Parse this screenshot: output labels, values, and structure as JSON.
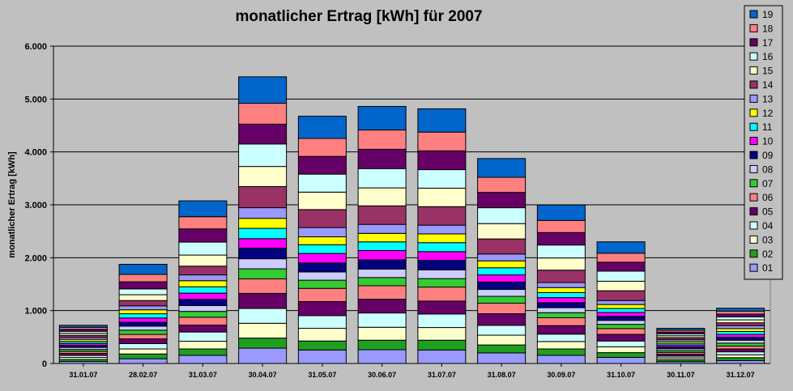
{
  "chart_data": {
    "type": "bar",
    "stacked": true,
    "title": "monatlicher Ertrag [kWh] für 2007",
    "xlabel": "",
    "ylabel": "monatlicher Ertrag [kWh]",
    "ylim": [
      0,
      6000
    ],
    "yticks": [
      "0",
      "1.000",
      "2.000",
      "3.000",
      "4.000",
      "5.000",
      "6.000"
    ],
    "ytick_values": [
      0,
      1000,
      2000,
      3000,
      4000,
      5000,
      6000
    ],
    "grid": true,
    "legend_position": "right",
    "categories": [
      "31.01.07",
      "28.02.07",
      "31.03.07",
      "30.04.07",
      "31.05.07",
      "30.06.07",
      "31.07.07",
      "31.08.07",
      "30.09.07",
      "31.10.07",
      "30.11.07",
      "31.12.07"
    ],
    "series": [
      {
        "name": "01",
        "color": "#9999ff",
        "values": [
          38,
          90,
          155,
          290,
          255,
          260,
          255,
          200,
          155,
          115,
          35,
          55
        ]
      },
      {
        "name": "02",
        "color": "#1f9f1f",
        "values": [
          38,
          90,
          120,
          190,
          170,
          180,
          185,
          150,
          120,
          90,
          35,
          55
        ]
      },
      {
        "name": "03",
        "color": "#ffffcc",
        "values": [
          38,
          95,
          145,
          280,
          240,
          245,
          240,
          185,
          140,
          110,
          35,
          55
        ]
      },
      {
        "name": "04",
        "color": "#ccffff",
        "values": [
          38,
          100,
          175,
          280,
          240,
          270,
          255,
          185,
          140,
          110,
          35,
          55
        ]
      },
      {
        "name": "05",
        "color": "#660066",
        "values": [
          38,
          90,
          130,
          285,
          265,
          260,
          245,
          220,
          160,
          125,
          35,
          55
        ]
      },
      {
        "name": "06",
        "color": "#ff8080",
        "values": [
          38,
          85,
          150,
          275,
          250,
          255,
          265,
          200,
          150,
          110,
          35,
          55
        ]
      },
      {
        "name": "07",
        "color": "#33cc33",
        "values": [
          38,
          80,
          110,
          190,
          155,
          155,
          160,
          130,
          95,
          80,
          35,
          55
        ]
      },
      {
        "name": "08",
        "color": "#ccccff",
        "values": [
          38,
          75,
          110,
          190,
          155,
          160,
          165,
          130,
          95,
          75,
          35,
          55
        ]
      },
      {
        "name": "09",
        "color": "#000080",
        "values": [
          38,
          75,
          115,
          200,
          170,
          175,
          180,
          140,
          95,
          75,
          35,
          55
        ]
      },
      {
        "name": "10",
        "color": "#ff00ff",
        "values": [
          38,
          80,
          120,
          180,
          180,
          175,
          165,
          135,
          95,
          75,
          35,
          55
        ]
      },
      {
        "name": "11",
        "color": "#00ffff",
        "values": [
          38,
          80,
          120,
          195,
          165,
          165,
          170,
          135,
          95,
          75,
          35,
          55
        ]
      },
      {
        "name": "12",
        "color": "#ffff00",
        "values": [
          38,
          75,
          115,
          190,
          150,
          160,
          165,
          130,
          95,
          75,
          35,
          55
        ]
      },
      {
        "name": "13",
        "color": "#9999ff",
        "values": [
          38,
          75,
          110,
          200,
          175,
          170,
          165,
          130,
          95,
          75,
          35,
          55
        ]
      },
      {
        "name": "14",
        "color": "#993366",
        "values": [
          38,
          100,
          165,
          400,
          340,
          350,
          350,
          285,
          235,
          185,
          35,
          55
        ]
      },
      {
        "name": "15",
        "color": "#ffffcc",
        "values": [
          38,
          110,
          210,
          380,
          330,
          340,
          350,
          290,
          230,
          180,
          35,
          55
        ]
      },
      {
        "name": "16",
        "color": "#ccffff",
        "values": [
          38,
          110,
          245,
          425,
          340,
          365,
          350,
          300,
          245,
          190,
          35,
          55
        ]
      },
      {
        "name": "17",
        "color": "#660066",
        "values": [
          38,
          135,
          250,
          375,
          335,
          365,
          355,
          290,
          235,
          170,
          35,
          55
        ]
      },
      {
        "name": "18",
        "color": "#ff8080",
        "values": [
          38,
          140,
          230,
          395,
          340,
          365,
          355,
          285,
          230,
          170,
          35,
          55
        ]
      },
      {
        "name": "19",
        "color": "#0066cc",
        "values": [
          38,
          190,
          300,
          500,
          420,
          445,
          440,
          355,
          290,
          215,
          35,
          55
        ]
      }
    ]
  }
}
